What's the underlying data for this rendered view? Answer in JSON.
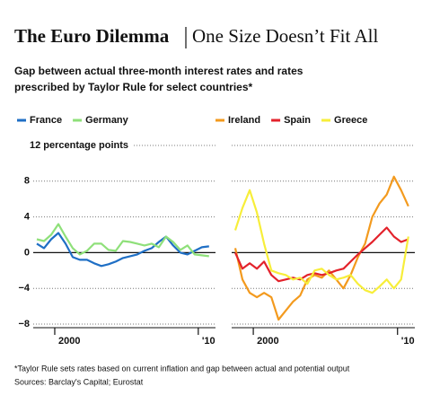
{
  "title": "The Euro Dilemma",
  "subtitle": "One Size Doesn’t Fit All",
  "description": [
    "Gap between actual three-month interest rates and rates",
    "prescribed by Taylor Rule for select countries*"
  ],
  "footnote": "*Taylor Rule sets rates based on current inflation and gap between actual and potential output",
  "source": "Sources: Barclay's Capital; Eurostat",
  "chart_data": [
    {
      "type": "line",
      "x": [
        1998.75,
        1999.25,
        1999.75,
        2000.25,
        2000.75,
        2001.25,
        2001.75,
        2002.25,
        2002.75,
        2003.25,
        2003.75,
        2004.25,
        2004.75,
        2005.25,
        2005.75,
        2006.25,
        2006.75,
        2007.25,
        2007.75,
        2008.25,
        2008.75,
        2009.25,
        2009.75,
        2010.25,
        2010.75
      ],
      "xlim": [
        1998.5,
        2011.2
      ],
      "xticks": [
        2000,
        {
          "value": 2010,
          "label": "'10"
        }
      ],
      "ylim": [
        -8,
        12
      ],
      "yticks": [
        {
          "value": 12,
          "label": "12 percentage points"
        },
        8,
        4,
        0,
        {
          "value": -4,
          "label": "−4"
        },
        {
          "value": -8,
          "label": "−8"
        }
      ],
      "grid": true,
      "series": [
        {
          "name": "France",
          "color": "#1f6fc5",
          "values": [
            1.0,
            0.5,
            1.5,
            2.2,
            1.0,
            -0.5,
            -0.8,
            -0.8,
            -1.2,
            -1.5,
            -1.3,
            -1.0,
            -0.6,
            -0.4,
            -0.2,
            0.2,
            0.5,
            1.2,
            1.8,
            0.8,
            0.0,
            -0.2,
            0.2,
            0.6,
            0.7
          ]
        },
        {
          "name": "Germany",
          "color": "#8fe07a",
          "values": [
            1.5,
            1.3,
            2.0,
            3.2,
            1.8,
            0.5,
            -0.2,
            0.2,
            1.0,
            1.0,
            0.3,
            0.2,
            1.3,
            1.2,
            1.0,
            0.8,
            1.0,
            0.6,
            1.8,
            1.2,
            0.3,
            0.8,
            -0.2,
            -0.3,
            -0.4
          ]
        }
      ]
    },
    {
      "type": "line",
      "x": [
        1998.75,
        1999.25,
        1999.75,
        2000.25,
        2000.75,
        2001.25,
        2001.75,
        2002.25,
        2002.75,
        2003.25,
        2003.75,
        2004.25,
        2004.75,
        2005.25,
        2005.75,
        2006.25,
        2006.75,
        2007.25,
        2007.75,
        2008.25,
        2008.75,
        2009.25,
        2009.75,
        2010.25,
        2010.75
      ],
      "xlim": [
        1998.5,
        2011.2
      ],
      "xticks": [
        2000,
        {
          "value": 2010,
          "label": "'10"
        }
      ],
      "grid": true,
      "series": [
        {
          "name": "Ireland",
          "color": "#f39a1e",
          "values": [
            0.5,
            -3.0,
            -4.5,
            -5.0,
            -4.5,
            -5.0,
            -7.5,
            -6.5,
            -5.5,
            -4.8,
            -3.0,
            -2.5,
            -2.8,
            -2.0,
            -3.0,
            -4.0,
            -2.5,
            -0.5,
            1.0,
            4.0,
            5.5,
            6.5,
            8.5,
            7.0,
            5.2
          ]
        },
        {
          "name": "Spain",
          "color": "#e3222b",
          "values": [
            0.0,
            -1.8,
            -1.2,
            -1.8,
            -1.0,
            -2.5,
            -3.2,
            -3.0,
            -2.8,
            -3.0,
            -2.5,
            -2.3,
            -2.5,
            -2.3,
            -2.0,
            -1.8,
            -1.0,
            -0.2,
            0.5,
            1.2,
            2.0,
            2.8,
            1.8,
            1.2,
            1.5
          ]
        },
        {
          "name": "Greece",
          "color": "#f7ee3a",
          "values": [
            2.5,
            5.0,
            7.0,
            4.5,
            1.0,
            -2.0,
            -2.3,
            -2.5,
            -3.0,
            -2.8,
            -3.5,
            -2.0,
            -1.8,
            -2.5,
            -3.0,
            -2.8,
            -2.5,
            -3.5,
            -4.2,
            -4.5,
            -3.8,
            -3.0,
            -4.0,
            -3.0,
            1.8
          ]
        }
      ]
    }
  ]
}
